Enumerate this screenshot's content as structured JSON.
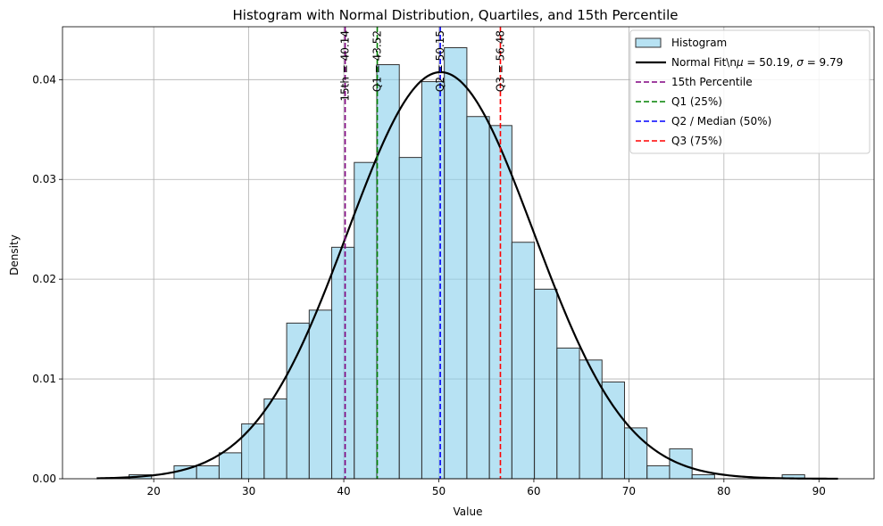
{
  "chart_data": {
    "type": "bar",
    "title": "Histogram with Normal Distribution, Quartiles, and 15th Percentile",
    "xlabel": "Value",
    "ylabel": "Density",
    "xlim": [
      10.4,
      95.8
    ],
    "ylim": [
      0,
      0.0453
    ],
    "xticks": [
      20,
      30,
      40,
      50,
      60,
      70,
      80,
      90
    ],
    "yticks": [
      0.0,
      0.01,
      0.02,
      0.03,
      0.04
    ],
    "ytick_labels": [
      "0.00",
      "0.01",
      "0.02",
      "0.03",
      "0.04"
    ],
    "grid": true,
    "legend_position": "top-right",
    "histogram": {
      "name": "Histogram",
      "color": "#87CEEB",
      "edge_color": "#333333",
      "bin_edges": [
        17.4,
        19.77,
        22.14,
        24.51,
        26.88,
        29.25,
        31.62,
        33.99,
        36.36,
        38.73,
        41.1,
        43.47,
        45.84,
        48.21,
        50.58,
        52.95,
        55.32,
        57.69,
        60.06,
        62.43,
        64.8,
        67.17,
        69.54,
        71.91,
        74.28,
        76.65,
        79.02,
        81.39,
        83.76,
        86.13,
        88.5
      ],
      "values": [
        0.0004,
        0.0,
        0.0013,
        0.0013,
        0.0026,
        0.0055,
        0.008,
        0.0156,
        0.0169,
        0.0232,
        0.0317,
        0.0415,
        0.0322,
        0.0398,
        0.0432,
        0.0363,
        0.0354,
        0.0237,
        0.019,
        0.0131,
        0.0119,
        0.0097,
        0.0051,
        0.0013,
        0.003,
        0.0004,
        0.0,
        0.0,
        0.0,
        0.0004
      ]
    },
    "normal_fit": {
      "name": "Normal Fit\\n$\\mu = 50.19$, $\\sigma = 9.79$",
      "legend_label_prefix": "Normal Fit\\n",
      "legend_mu_label": "μ",
      "legend_sigma_label": "σ",
      "mu": 50.19,
      "sigma": 9.79,
      "x_range": [
        14.0,
        92.0
      ],
      "color": "#000000"
    },
    "vlines": [
      {
        "name": "15th Percentile",
        "value": 40.14,
        "label": "15th = 40.14",
        "color": "#800080"
      },
      {
        "name": "Q1 (25%)",
        "value": 43.52,
        "label": "Q1 = 43.52",
        "color": "#008000"
      },
      {
        "name": "Q2 / Median (50%)",
        "value": 50.15,
        "label": "Q2 = 50.15",
        "color": "#0000FF"
      },
      {
        "name": "Q3 (75%)",
        "value": 56.48,
        "label": "Q3 = 56.48",
        "color": "#FF0000"
      }
    ]
  }
}
